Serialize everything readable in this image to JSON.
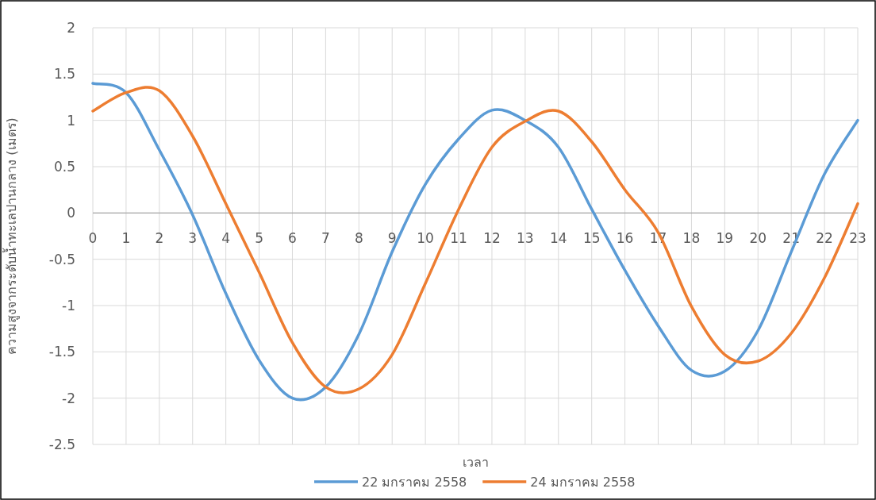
{
  "chart_data": {
    "type": "line",
    "xlabel": "เวลา",
    "ylabel": "ความสูงจากระดับน้ำทะเลปานกลาง (เมตร)",
    "x": [
      0,
      1,
      2,
      3,
      4,
      5,
      6,
      7,
      8,
      9,
      10,
      11,
      12,
      13,
      14,
      15,
      16,
      17,
      18,
      19,
      20,
      21,
      22,
      23
    ],
    "series": [
      {
        "name": "22 มกราคม 2558",
        "color": "#5b9bd5",
        "values": [
          1.4,
          1.3,
          0.68,
          -0.02,
          -0.87,
          -1.59,
          -2.0,
          -1.88,
          -1.31,
          -0.42,
          0.31,
          0.8,
          1.11,
          1.0,
          0.71,
          0.04,
          -0.62,
          -1.22,
          -1.7,
          -1.71,
          -1.27,
          -0.42,
          0.42,
          1.0
        ]
      },
      {
        "name": "24 มกราคม 2558",
        "color": "#ed7d31",
        "values": [
          1.1,
          1.3,
          1.32,
          0.83,
          0.1,
          -0.64,
          -1.4,
          -1.88,
          -1.9,
          -1.53,
          -0.76,
          0.04,
          0.71,
          0.99,
          1.1,
          0.77,
          0.25,
          -0.21,
          -1.01,
          -1.53,
          -1.6,
          -1.3,
          -0.7,
          0.1
        ]
      }
    ],
    "xlim": [
      0,
      23
    ],
    "xticks": [
      0,
      1,
      2,
      3,
      4,
      5,
      6,
      7,
      8,
      9,
      10,
      11,
      12,
      13,
      14,
      15,
      16,
      17,
      18,
      19,
      20,
      21,
      22,
      23
    ],
    "ylim": [
      -2.5,
      2
    ],
    "yticks": [
      {
        "value": -2.5,
        "label": "-2.5"
      },
      {
        "value": -2,
        "label": "-2"
      },
      {
        "value": -1.5,
        "label": "-1.5"
      },
      {
        "value": -1,
        "label": "-1"
      },
      {
        "value": -0.5,
        "label": "-0.5"
      },
      {
        "value": 0,
        "label": "0"
      },
      {
        "value": 0.5,
        "label": "0.5"
      },
      {
        "value": 1,
        "label": "1"
      },
      {
        "value": 1.5,
        "label": "1.5"
      },
      {
        "value": 2,
        "label": "2"
      }
    ],
    "grid": true,
    "legend": "bottom"
  }
}
